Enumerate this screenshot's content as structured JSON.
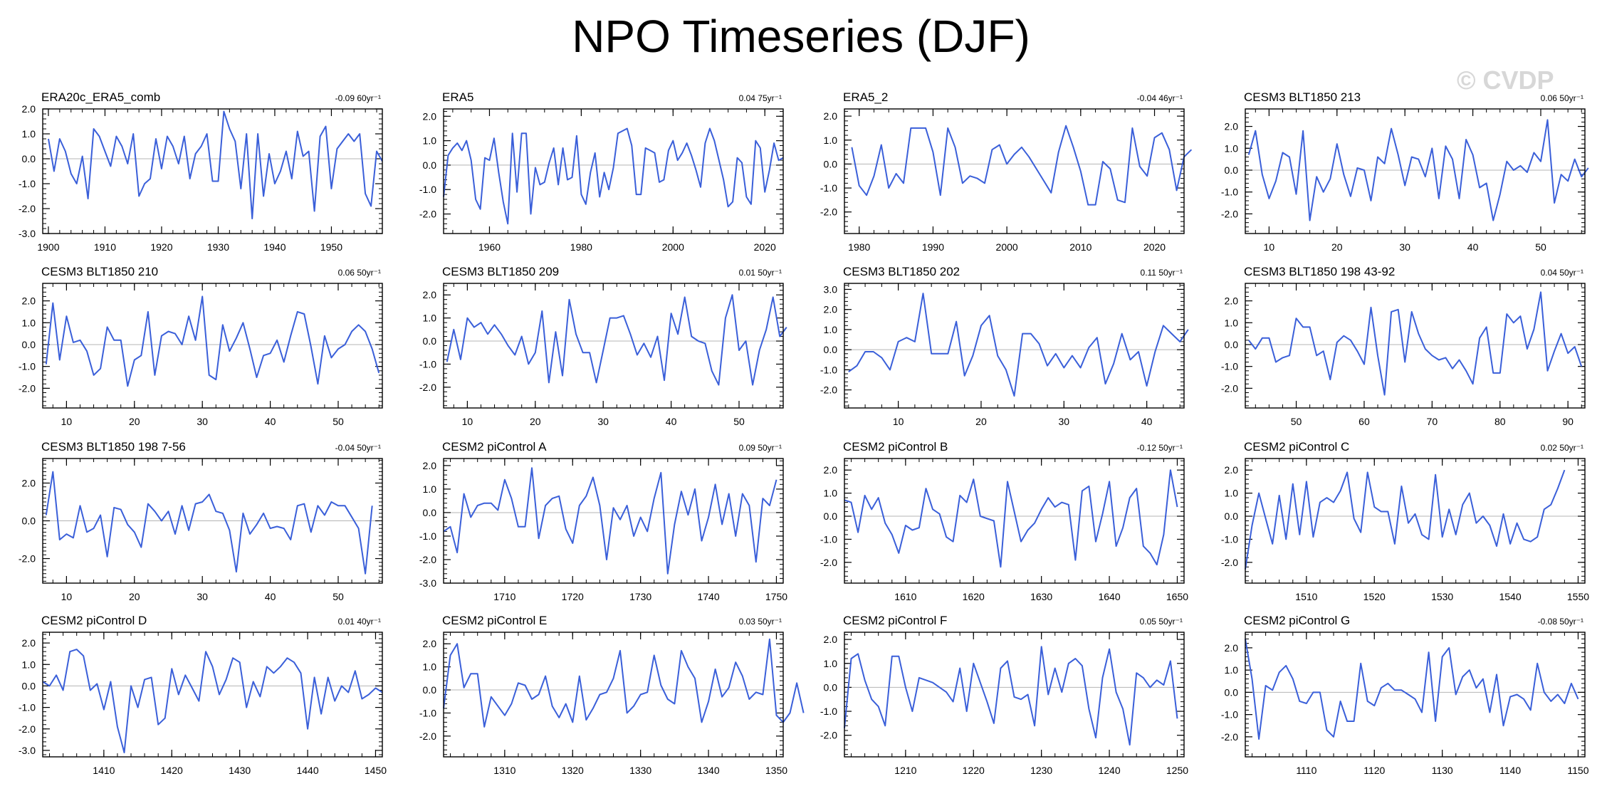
{
  "title": "NPO Timeseries (DJF)",
  "watermark": "© CVDP",
  "colors": {
    "line": "#3a5fd9",
    "line_secondary": "#888888",
    "zero": "#b4b4b4",
    "frame": "#000000"
  },
  "chart_data": [
    {
      "type": "line",
      "title": "ERA20c_ERA5_comb",
      "trend": "-0.09 60yr⁻¹",
      "xlim": [
        1899,
        1959
      ],
      "xticks": [
        1900,
        1910,
        1920,
        1930,
        1940,
        1950
      ],
      "ylim": [
        -3.0,
        2.0
      ],
      "yticks": [
        "2.0",
        "1.0",
        "0.0",
        "-1.0",
        "-2.0",
        "-3.0"
      ],
      "x_start": 1900,
      "values": [
        0.8,
        -0.5,
        0.8,
        0.3,
        -0.6,
        -1.0,
        0.1,
        -1.6,
        1.2,
        0.9,
        0.3,
        -0.3,
        0.9,
        0.5,
        -0.2,
        1.0,
        -1.5,
        -1.0,
        -0.8,
        0.8,
        -0.4,
        0.9,
        0.5,
        -0.2,
        0.9,
        -0.8,
        0.2,
        0.5,
        1.0,
        -0.9,
        -0.9,
        1.9,
        1.2,
        0.7,
        -1.2,
        1.0,
        -2.4,
        1.0,
        -1.5,
        0.2,
        -1.0,
        -0.5,
        0.3,
        -0.8,
        1.1,
        0.1,
        0.3,
        -2.1,
        0.9,
        1.3,
        -1.2,
        0.4,
        0.7,
        1.0,
        0.7,
        1.0,
        -1.4,
        -1.9,
        0.3,
        -0.1
      ]
    },
    {
      "type": "line",
      "title": "ERA5",
      "trend": "0.04 75yr⁻¹",
      "xlim": [
        1950,
        2024
      ],
      "xticks": [
        1960,
        1980,
        2000,
        2020
      ],
      "ylim": [
        -2.8,
        2.3
      ],
      "yticks": [
        "2.0",
        "1.0",
        "0.0",
        "-1.0",
        "-2.0"
      ],
      "x_start": 1950,
      "values": [
        -1.3,
        0.4,
        0.7,
        0.9,
        0.6,
        1.0,
        0.2,
        -1.4,
        -1.8,
        0.3,
        0.2,
        1.1,
        -0.3,
        -1.5,
        -2.4,
        1.3,
        -1.1,
        1.3,
        1.3,
        -2.0,
        -0.1,
        -0.8,
        -0.7,
        0.1,
        0.7,
        -0.8,
        0.7,
        -0.6,
        -0.5,
        1.2,
        -1.2,
        -1.6,
        -0.3,
        0.5,
        -1.3,
        -0.3,
        -1.0,
        -0.1,
        1.3,
        1.4,
        1.5,
        0.8,
        -1.2,
        -1.2,
        0.7,
        0.6,
        0.5,
        -0.7,
        -0.6,
        0.6,
        1.0,
        0.2,
        0.5,
        0.9,
        0.4,
        -0.2,
        -0.9,
        0.9,
        1.5,
        1.0,
        0.2,
        -0.6,
        -1.7,
        -1.5,
        0.3,
        0.1,
        -1.3,
        -1.6,
        1.0,
        0.7,
        -1.1,
        -0.2,
        0.9,
        0.2,
        0.3
      ]
    },
    {
      "type": "line",
      "title": "ERA5_2",
      "trend": "-0.04 46yr⁻¹",
      "xlim": [
        1978,
        2024
      ],
      "xticks": [
        1980,
        1990,
        2000,
        2010,
        2020
      ],
      "ylim": [
        -2.9,
        2.3
      ],
      "yticks": [
        "2.0",
        "1.0",
        "0.0",
        "-1.0",
        "-2.0"
      ],
      "x_start": 1979,
      "values": [
        0.7,
        -0.9,
        -1.3,
        -0.5,
        0.8,
        -1.0,
        -0.4,
        -0.8,
        1.5,
        1.5,
        1.5,
        0.5,
        -1.3,
        1.5,
        0.7,
        -0.8,
        -0.5,
        -0.6,
        -0.8,
        0.6,
        0.8,
        0.0,
        0.4,
        0.7,
        0.3,
        -0.2,
        -0.7,
        -1.2,
        0.5,
        1.6,
        0.7,
        -0.3,
        -1.7,
        -1.7,
        0.1,
        -0.2,
        -1.5,
        -1.6,
        1.5,
        -0.1,
        -0.5,
        1.1,
        1.3,
        0.6,
        -1.1,
        0.3,
        0.6
      ]
    },
    {
      "type": "line",
      "title": "CESM3 BLT1850 213",
      "trend": "0.06 50yr⁻¹",
      "xlim": [
        6.5,
        56.5
      ],
      "xticks": [
        10,
        20,
        30,
        40,
        50
      ],
      "ylim": [
        -2.9,
        2.8
      ],
      "yticks": [
        "2.0",
        "1.0",
        "0.0",
        "-1.0",
        "-2.0"
      ],
      "x_start": 7,
      "values": [
        0.7,
        1.8,
        -0.2,
        -1.3,
        -0.5,
        0.8,
        0.6,
        -1.1,
        1.8,
        -2.3,
        -0.3,
        -1.0,
        -0.4,
        1.2,
        -0.2,
        -1.2,
        0.1,
        0.0,
        -1.4,
        0.6,
        0.3,
        1.9,
        0.7,
        -0.7,
        0.6,
        0.5,
        -0.3,
        1.0,
        -1.3,
        1.1,
        0.5,
        -1.3,
        1.4,
        0.7,
        -0.8,
        -0.6,
        -2.3,
        -1.1,
        0.4,
        0.0,
        0.2,
        -0.1,
        0.8,
        0.4,
        2.3,
        -1.5,
        -0.2,
        -0.5,
        0.5,
        -0.3,
        0.1
      ]
    },
    {
      "type": "line",
      "title": "CESM3 BLT1850 210",
      "trend": "0.06 50yr⁻¹",
      "xlim": [
        6.5,
        56.5
      ],
      "xticks": [
        10,
        20,
        30,
        40,
        50
      ],
      "ylim": [
        -2.9,
        2.8
      ],
      "yticks": [
        "2.0",
        "1.0",
        "0.0",
        "-1.0",
        "-2.0"
      ],
      "x_start": 7,
      "values": [
        -0.9,
        1.9,
        -0.7,
        1.3,
        0.1,
        0.2,
        -0.3,
        -1.4,
        -1.1,
        0.8,
        0.2,
        0.2,
        -1.9,
        -0.7,
        -0.5,
        1.5,
        -1.4,
        0.4,
        0.6,
        0.5,
        0.0,
        1.3,
        0.2,
        2.2,
        -1.4,
        -1.6,
        0.9,
        -0.3,
        0.3,
        1.0,
        -0.2,
        -1.5,
        -0.5,
        -0.4,
        0.2,
        -0.8,
        0.4,
        1.5,
        1.4,
        -0.1,
        -1.8,
        0.4,
        -0.6,
        -0.2,
        0.0,
        0.6,
        0.9,
        0.6,
        -0.2,
        -1.3
      ]
    },
    {
      "type": "line",
      "title": "CESM3 BLT1850 209",
      "trend": "0.01 50yr⁻¹",
      "xlim": [
        6.5,
        56.5
      ],
      "xticks": [
        10,
        20,
        30,
        40,
        50
      ],
      "ylim": [
        -2.9,
        2.5
      ],
      "yticks": [
        "2.0",
        "1.0",
        "0.0",
        "-1.0",
        "-2.0"
      ],
      "x_start": 7,
      "values": [
        -0.9,
        0.5,
        -0.8,
        1.0,
        0.6,
        0.8,
        0.3,
        0.7,
        0.3,
        -0.2,
        -0.6,
        0.2,
        -1.0,
        -0.5,
        1.3,
        -1.8,
        0.4,
        -1.5,
        1.8,
        0.3,
        -0.5,
        -0.5,
        -1.8,
        -0.4,
        1.0,
        1.0,
        1.1,
        0.3,
        -0.6,
        -0.1,
        -0.7,
        0.2,
        -1.7,
        1.2,
        0.3,
        1.9,
        0.2,
        0.0,
        -0.1,
        -1.3,
        -1.9,
        1.0,
        2.0,
        -0.4,
        0.0,
        -1.9,
        -0.4,
        0.5,
        1.9,
        0.2,
        0.6
      ]
    },
    {
      "type": "line",
      "title": "CESM3 BLT1850 202",
      "trend": "0.11 50yr⁻¹",
      "xlim": [
        3.5,
        44.5
      ],
      "xticks": [
        10,
        20,
        30,
        40
      ],
      "ylim": [
        -2.9,
        3.3
      ],
      "yticks": [
        "3.0",
        "2.0",
        "1.0",
        "0.0",
        "-1.0",
        "-2.0"
      ],
      "x_start": 4,
      "values": [
        -1.1,
        -0.8,
        -0.1,
        -0.1,
        -0.4,
        -1.0,
        0.4,
        0.6,
        0.4,
        2.8,
        -0.2,
        -0.2,
        -0.2,
        1.4,
        -1.3,
        -0.3,
        1.2,
        1.7,
        -0.3,
        -1.0,
        -2.3,
        0.8,
        0.8,
        0.3,
        -0.8,
        -0.2,
        -0.9,
        -0.3,
        -0.9,
        0.1,
        0.6,
        -1.7,
        -0.7,
        0.8,
        -0.5,
        -0.1,
        -1.8,
        -0.1,
        1.2,
        0.8,
        0.4,
        1.0
      ]
    },
    {
      "type": "line",
      "title": "CESM3 BLT1850 198 43-92",
      "trend": "0.04 50yr⁻¹",
      "xlim": [
        42.5,
        92.5
      ],
      "xticks": [
        50,
        60,
        70,
        80,
        90
      ],
      "ylim": [
        -2.9,
        2.8
      ],
      "yticks": [
        "2.0",
        "1.0",
        "0.0",
        "-1.0",
        "-2.0"
      ],
      "x_start": 43,
      "values": [
        0.2,
        -0.2,
        0.3,
        0.3,
        -0.8,
        -0.6,
        -0.5,
        1.2,
        0.8,
        0.8,
        -0.5,
        -0.3,
        -1.6,
        0.1,
        0.4,
        0.2,
        -0.3,
        -0.9,
        1.7,
        -0.5,
        -2.3,
        1.5,
        1.6,
        -0.8,
        1.5,
        0.5,
        -0.2,
        -0.5,
        -0.7,
        -0.6,
        -1.1,
        -0.7,
        -1.2,
        -1.8,
        0.3,
        0.8,
        -1.3,
        -1.3,
        1.4,
        1.0,
        1.3,
        -0.2,
        0.7,
        2.4,
        -1.2,
        -0.3,
        0.5,
        -0.4,
        -0.1,
        -1.0
      ]
    },
    {
      "type": "line",
      "title": "CESM3 BLT1850 198 7-56",
      "trend": "-0.04 50yr⁻¹",
      "xlim": [
        6.5,
        56.5
      ],
      "xticks": [
        10,
        20,
        30,
        40,
        50
      ],
      "ylim": [
        -3.3,
        3.3
      ],
      "yticks": [
        "2.0",
        "0.0",
        "-2.0"
      ],
      "x_start": 7,
      "values": [
        0.3,
        2.6,
        -1.0,
        -0.7,
        -0.9,
        0.8,
        -0.6,
        -0.4,
        0.3,
        -1.9,
        0.7,
        0.6,
        -0.2,
        -0.6,
        -1.4,
        0.9,
        0.5,
        0.0,
        0.5,
        -0.7,
        0.8,
        -0.5,
        0.9,
        1.0,
        1.4,
        0.5,
        0.4,
        -0.5,
        -2.7,
        0.4,
        -0.7,
        -0.2,
        0.4,
        -0.4,
        -0.3,
        -0.4,
        -1.0,
        0.8,
        0.9,
        -0.6,
        0.8,
        0.3,
        1.0,
        0.8,
        0.8,
        0.2,
        -0.4,
        -2.8,
        0.8
      ]
    },
    {
      "type": "line",
      "title": "CESM2 piControl A",
      "trend": "0.09 50yr⁻¹",
      "xlim": [
        1701,
        1751
      ],
      "xticks": [
        1710,
        1720,
        1730,
        1740,
        1750
      ],
      "ylim": [
        -3.0,
        2.3
      ],
      "yticks": [
        "2.0",
        "1.0",
        "0.0",
        "-1.0",
        "-2.0",
        "-3.0"
      ],
      "x_start": 1701,
      "values": [
        -0.8,
        -0.6,
        -1.7,
        0.8,
        -0.2,
        0.3,
        0.4,
        0.4,
        0.1,
        1.4,
        0.6,
        -0.6,
        -0.6,
        1.9,
        -1.1,
        0.3,
        0.6,
        0.7,
        -0.7,
        -1.3,
        0.3,
        0.7,
        1.5,
        0.3,
        -2.0,
        0.2,
        -0.3,
        0.3,
        -1.0,
        -0.2,
        -0.8,
        0.6,
        1.7,
        -2.6,
        -0.5,
        0.9,
        -0.1,
        1.0,
        -1.2,
        -0.2,
        1.2,
        -0.5,
        0.8,
        -1.0,
        0.8,
        0.3,
        -2.1,
        0.6,
        0.3,
        1.4
      ]
    },
    {
      "type": "line",
      "title": "CESM2 piControl B",
      "trend": "-0.12 50yr⁻¹",
      "xlim": [
        1601,
        1651
      ],
      "xticks": [
        1610,
        1620,
        1630,
        1640,
        1650
      ],
      "ylim": [
        -2.9,
        2.5
      ],
      "yticks": [
        "2.0",
        "1.0",
        "0.0",
        "-1.0",
        "-2.0"
      ],
      "x_start": 1601,
      "values": [
        0.7,
        0.6,
        -0.7,
        0.9,
        0.3,
        0.8,
        -0.3,
        -0.8,
        -1.6,
        -0.4,
        -0.6,
        -0.5,
        1.2,
        0.3,
        0.1,
        -0.9,
        -1.1,
        0.9,
        0.6,
        1.6,
        0.0,
        -0.1,
        -0.2,
        -2.2,
        1.5,
        0.2,
        -1.1,
        -0.6,
        -0.3,
        0.3,
        0.8,
        0.4,
        0.6,
        0.5,
        -1.9,
        1.1,
        1.3,
        -1.1,
        0.1,
        1.5,
        -1.3,
        -0.5,
        0.8,
        1.2,
        -1.3,
        -1.6,
        -2.1,
        -0.8,
        2.0,
        0.4
      ]
    },
    {
      "type": "line",
      "title": "CESM2 piControl C",
      "trend": "0.02 50yr⁻¹",
      "xlim": [
        1501,
        1551
      ],
      "xticks": [
        1510,
        1520,
        1530,
        1540,
        1550
      ],
      "ylim": [
        -2.9,
        2.5
      ],
      "yticks": [
        "2.0",
        "1.0",
        "0.0",
        "-1.0",
        "-2.0"
      ],
      "x_start": 1501,
      "values": [
        -2.3,
        -0.4,
        1.0,
        -0.1,
        -1.2,
        0.9,
        -1.0,
        1.4,
        -0.8,
        1.5,
        -0.9,
        0.6,
        0.8,
        0.6,
        1.1,
        1.9,
        -0.1,
        -0.7,
        1.9,
        0.4,
        0.2,
        0.2,
        -1.2,
        1.3,
        -0.3,
        0.1,
        -0.8,
        -1.0,
        1.8,
        -0.9,
        0.3,
        -0.8,
        0.5,
        1.0,
        -0.3,
        0.0,
        -0.4,
        -1.3,
        0.1,
        -1.2,
        -0.3,
        -1.0,
        -1.1,
        -0.9,
        0.3,
        0.5,
        1.2,
        2.0
      ]
    },
    {
      "type": "line",
      "title": "CESM2 piControl D",
      "trend": "0.01 40yr⁻¹",
      "xlim": [
        1401,
        1451
      ],
      "xticks": [
        1410,
        1420,
        1430,
        1440,
        1450
      ],
      "ylim": [
        -3.3,
        2.5
      ],
      "yticks": [
        "2.0",
        "1.0",
        "0.0",
        "-1.0",
        "-2.0",
        "-3.0"
      ],
      "x_start": 1401,
      "values": [
        0.2,
        0.0,
        0.5,
        -0.2,
        1.6,
        1.7,
        1.4,
        -0.2,
        0.1,
        -1.1,
        0.2,
        -1.9,
        -3.1,
        0.0,
        -1.0,
        0.3,
        0.4,
        -1.8,
        -1.5,
        0.8,
        -0.4,
        0.5,
        -0.1,
        -0.7,
        1.6,
        0.9,
        -0.4,
        0.3,
        1.3,
        1.1,
        -1.0,
        0.2,
        -0.5,
        0.9,
        0.6,
        0.9,
        1.3,
        1.1,
        0.6,
        -2.0,
        0.4,
        -1.3,
        0.4,
        -0.7,
        0.0,
        -0.3,
        0.7,
        -0.6,
        -0.4,
        -0.1,
        -0.3
      ]
    },
    {
      "type": "line",
      "title": "CESM2 piControl E",
      "trend": "0.03 50yr⁻¹",
      "xlim": [
        1301,
        1351
      ],
      "xticks": [
        1310,
        1320,
        1330,
        1340,
        1350
      ],
      "ylim": [
        -2.9,
        2.5
      ],
      "yticks": [
        "2.0",
        "1.0",
        "0.0",
        "-1.0",
        "-2.0"
      ],
      "x_start": 1301,
      "values": [
        -0.8,
        1.5,
        2.0,
        0.1,
        0.7,
        0.7,
        -1.6,
        -0.3,
        -0.7,
        -1.1,
        -0.6,
        0.3,
        0.2,
        -0.4,
        -0.2,
        0.6,
        -0.7,
        -1.2,
        -0.6,
        -1.4,
        0.6,
        -1.3,
        -0.8,
        -0.2,
        -0.1,
        0.5,
        1.7,
        -1.0,
        -0.7,
        -0.2,
        -0.1,
        1.5,
        0.2,
        -0.4,
        -0.6,
        1.7,
        1.0,
        0.5,
        -1.4,
        -0.5,
        0.9,
        -0.3,
        0.1,
        1.2,
        0.6,
        -0.4,
        -0.1,
        -0.2,
        2.2,
        -1.1,
        -1.4,
        -1.0,
        0.3,
        -1.0
      ]
    },
    {
      "type": "line",
      "title": "CESM2 piControl F",
      "trend": "0.05 50yr⁻¹",
      "xlim": [
        1201,
        1251
      ],
      "xticks": [
        1210,
        1220,
        1230,
        1240,
        1250
      ],
      "ylim": [
        -2.9,
        2.3
      ],
      "yticks": [
        "2.0",
        "1.0",
        "0.0",
        "-1.0",
        "-2.0"
      ],
      "x_start": 1201,
      "values": [
        -1.7,
        1.2,
        1.4,
        0.3,
        -0.5,
        -0.8,
        -1.6,
        1.3,
        1.3,
        0.0,
        -1.0,
        0.4,
        0.3,
        0.2,
        0.0,
        -0.2,
        -0.6,
        0.8,
        -1.0,
        1.0,
        0.2,
        -0.6,
        -1.5,
        0.8,
        1.1,
        -0.4,
        -0.5,
        -0.3,
        -1.6,
        1.7,
        -0.3,
        0.8,
        -0.2,
        1.0,
        1.2,
        0.9,
        -0.9,
        -2.1,
        0.4,
        1.6,
        -0.2,
        -0.9,
        -2.4,
        0.6,
        0.4,
        0.0,
        0.3,
        0.1,
        1.1,
        -1.3
      ]
    },
    {
      "type": "line",
      "title": "CESM2 piControl G",
      "trend": "-0.08 50yr⁻¹",
      "xlim": [
        1101,
        1151
      ],
      "xticks": [
        1110,
        1120,
        1130,
        1140,
        1150
      ],
      "ylim": [
        -2.9,
        2.7
      ],
      "yticks": [
        "2.0",
        "1.0",
        "0.0",
        "-1.0",
        "-2.0"
      ],
      "x_start": 1101,
      "values": [
        2.4,
        0.6,
        -2.1,
        0.3,
        0.1,
        0.9,
        1.2,
        0.6,
        -0.4,
        -0.5,
        0.0,
        0.0,
        -1.7,
        -2.0,
        -0.4,
        -1.3,
        -1.3,
        1.3,
        -0.4,
        -0.6,
        0.2,
        0.4,
        0.1,
        0.1,
        -0.1,
        -0.3,
        -0.9,
        1.8,
        -1.3,
        1.6,
        2.0,
        -0.1,
        0.7,
        1.0,
        0.2,
        0.6,
        -0.9,
        0.8,
        -1.5,
        -0.2,
        -0.1,
        -0.3,
        -0.8,
        1.3,
        0.0,
        -0.4,
        -0.1,
        -0.5,
        0.4,
        -0.3
      ]
    }
  ]
}
